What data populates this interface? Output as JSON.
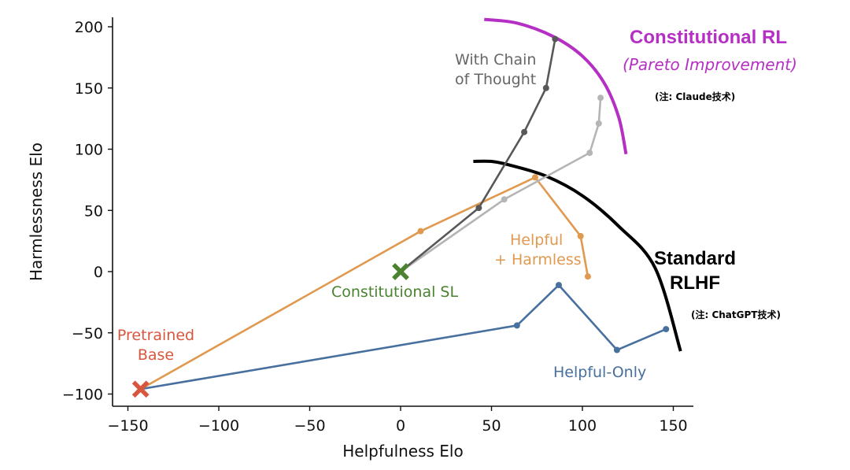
{
  "chart_data": {
    "type": "line",
    "xlabel": "Helpfulness Elo",
    "ylabel": "Harmlessness Elo",
    "xlim": [
      -158,
      158
    ],
    "ylim": [
      -110,
      207
    ],
    "xticks": [
      -150,
      -100,
      -50,
      0,
      50,
      100,
      150
    ],
    "yticks": [
      -100,
      -50,
      0,
      50,
      100,
      150,
      200
    ],
    "grid": false,
    "series": [
      {
        "name": "Helpful-Only",
        "color": "#47709e",
        "points": [
          [
            -143,
            -96
          ],
          [
            64,
            -44
          ],
          [
            87,
            -11
          ],
          [
            119,
            -64
          ],
          [
            146,
            -47
          ]
        ]
      },
      {
        "name": "Helpful + Harmless",
        "color": "#e0994e",
        "points": [
          [
            -143,
            -96
          ],
          [
            11,
            33
          ],
          [
            74,
            77
          ],
          [
            99,
            29
          ],
          [
            103,
            -4
          ]
        ]
      },
      {
        "color": "#b5b5b5",
        "points": [
          [
            0,
            0
          ],
          [
            57,
            59
          ],
          [
            104,
            97
          ],
          [
            109,
            121
          ],
          [
            110,
            142
          ]
        ]
      },
      {
        "name": "With Chain of Thought",
        "color": "#585858",
        "points": [
          [
            0,
            0
          ],
          [
            43,
            52
          ],
          [
            68,
            114
          ],
          [
            80,
            150
          ],
          [
            85,
            190
          ]
        ]
      }
    ],
    "markers": [
      {
        "name": "Pretrained Base",
        "x": -143,
        "y": -96,
        "color": "#d9563e"
      },
      {
        "name": "Constitutional SL",
        "x": 0,
        "y": 0,
        "color": "#4a8230"
      }
    ],
    "curves": [
      {
        "name": "Standard RLHF",
        "color": "#000000",
        "points": [
          [
            40,
            90
          ],
          [
            50,
            90
          ],
          [
            60,
            87
          ],
          [
            80,
            78
          ],
          [
            100,
            62
          ],
          [
            120,
            37
          ],
          [
            140,
            3
          ],
          [
            154,
            -65
          ]
        ]
      },
      {
        "name": "Constitutional RL",
        "color": "#b62fc5",
        "points": [
          [
            46,
            206
          ],
          [
            64,
            203
          ],
          [
            84,
            192
          ],
          [
            100,
            176
          ],
          [
            112,
            154
          ],
          [
            120,
            126
          ],
          [
            124,
            96
          ]
        ]
      }
    ],
    "annotations": {
      "with_cot_line1": "With Chain",
      "with_cot_line2": "of Thought",
      "helpful_harmless_line1": "Helpful",
      "helpful_harmless_line2": "+ Harmless",
      "constitutional_sl": "Constitutional SL",
      "pretrained_line1": "Pretrained",
      "pretrained_line2": "Base",
      "helpful_only": "Helpful-Only",
      "standard_rlhf_line1": "Standard",
      "standard_rlhf_line2": "RLHF",
      "standard_rlhf_note": "(注: ChatGPT技术)",
      "constitutional_rl": "Constitutional RL",
      "pareto": "(Pareto Improvement)",
      "constitutional_rl_note": "(注: Claude技术)"
    }
  }
}
